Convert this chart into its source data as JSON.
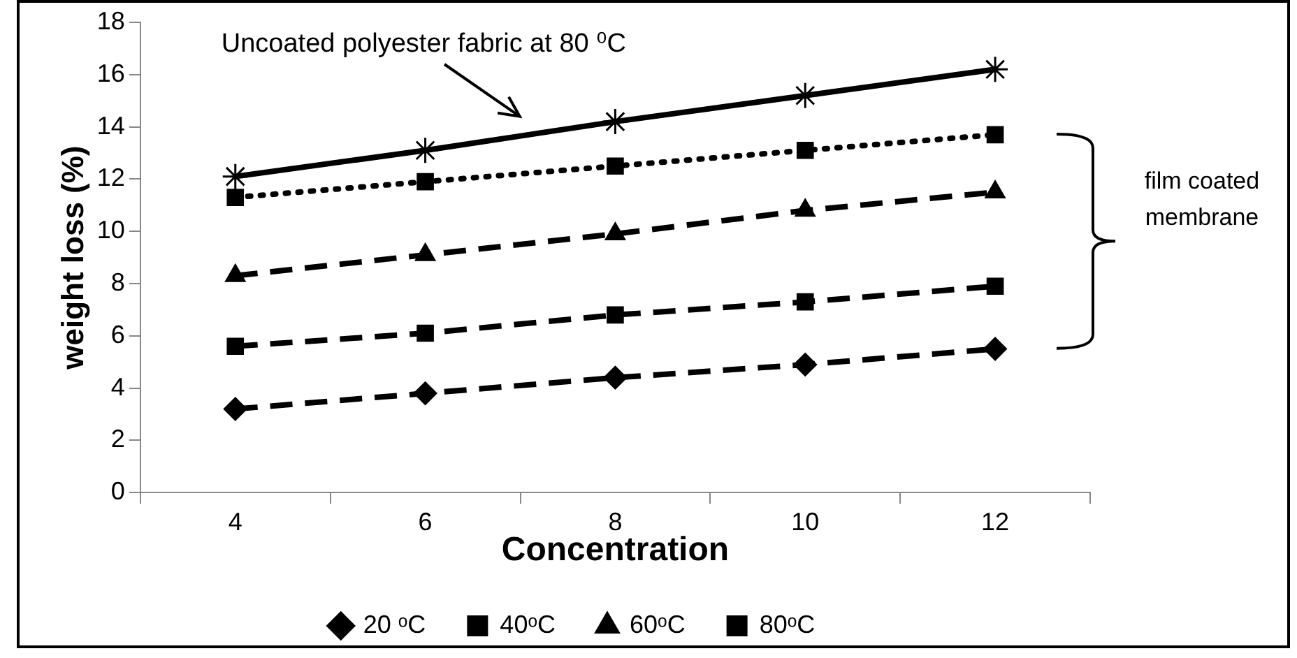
{
  "chart_data": {
    "type": "line",
    "xlabel": "Concentration",
    "ylabel": "weight loss (%)",
    "categories": [
      "4",
      "6",
      "8",
      "10",
      "12"
    ],
    "ylim": [
      0,
      18
    ],
    "yticks": [
      0,
      2,
      4,
      6,
      8,
      10,
      12,
      14,
      16,
      18
    ],
    "grid": false,
    "legend": "bottom",
    "series": [
      {
        "name": "20 ᵒC",
        "color": "#000000",
        "marker": "diamond",
        "line_style": "dashed",
        "values": [
          3.2,
          3.8,
          4.4,
          4.9,
          5.5
        ]
      },
      {
        "name": "40ᵒC",
        "color": "#000000",
        "marker": "square",
        "line_style": "dashed",
        "values": [
          5.6,
          6.1,
          6.8,
          7.3,
          7.9
        ]
      },
      {
        "name": "60ᵒC",
        "color": "#000000",
        "marker": "triangle",
        "line_style": "dashed",
        "values": [
          8.3,
          9.1,
          9.9,
          10.8,
          11.5
        ]
      },
      {
        "name": "80ᵒC",
        "color": "#000000",
        "marker": "square",
        "line_style": "dotted",
        "values": [
          11.3,
          11.9,
          12.5,
          13.1,
          13.7
        ]
      },
      {
        "color": "#000000",
        "marker": "cross",
        "line_style": "solid",
        "values": [
          12.1,
          13.1,
          14.2,
          15.2,
          16.2
        ]
      }
    ],
    "annotations": [
      "Uncoated polyester fabric at 80 ⁰C",
      "film coated membrane"
    ]
  }
}
